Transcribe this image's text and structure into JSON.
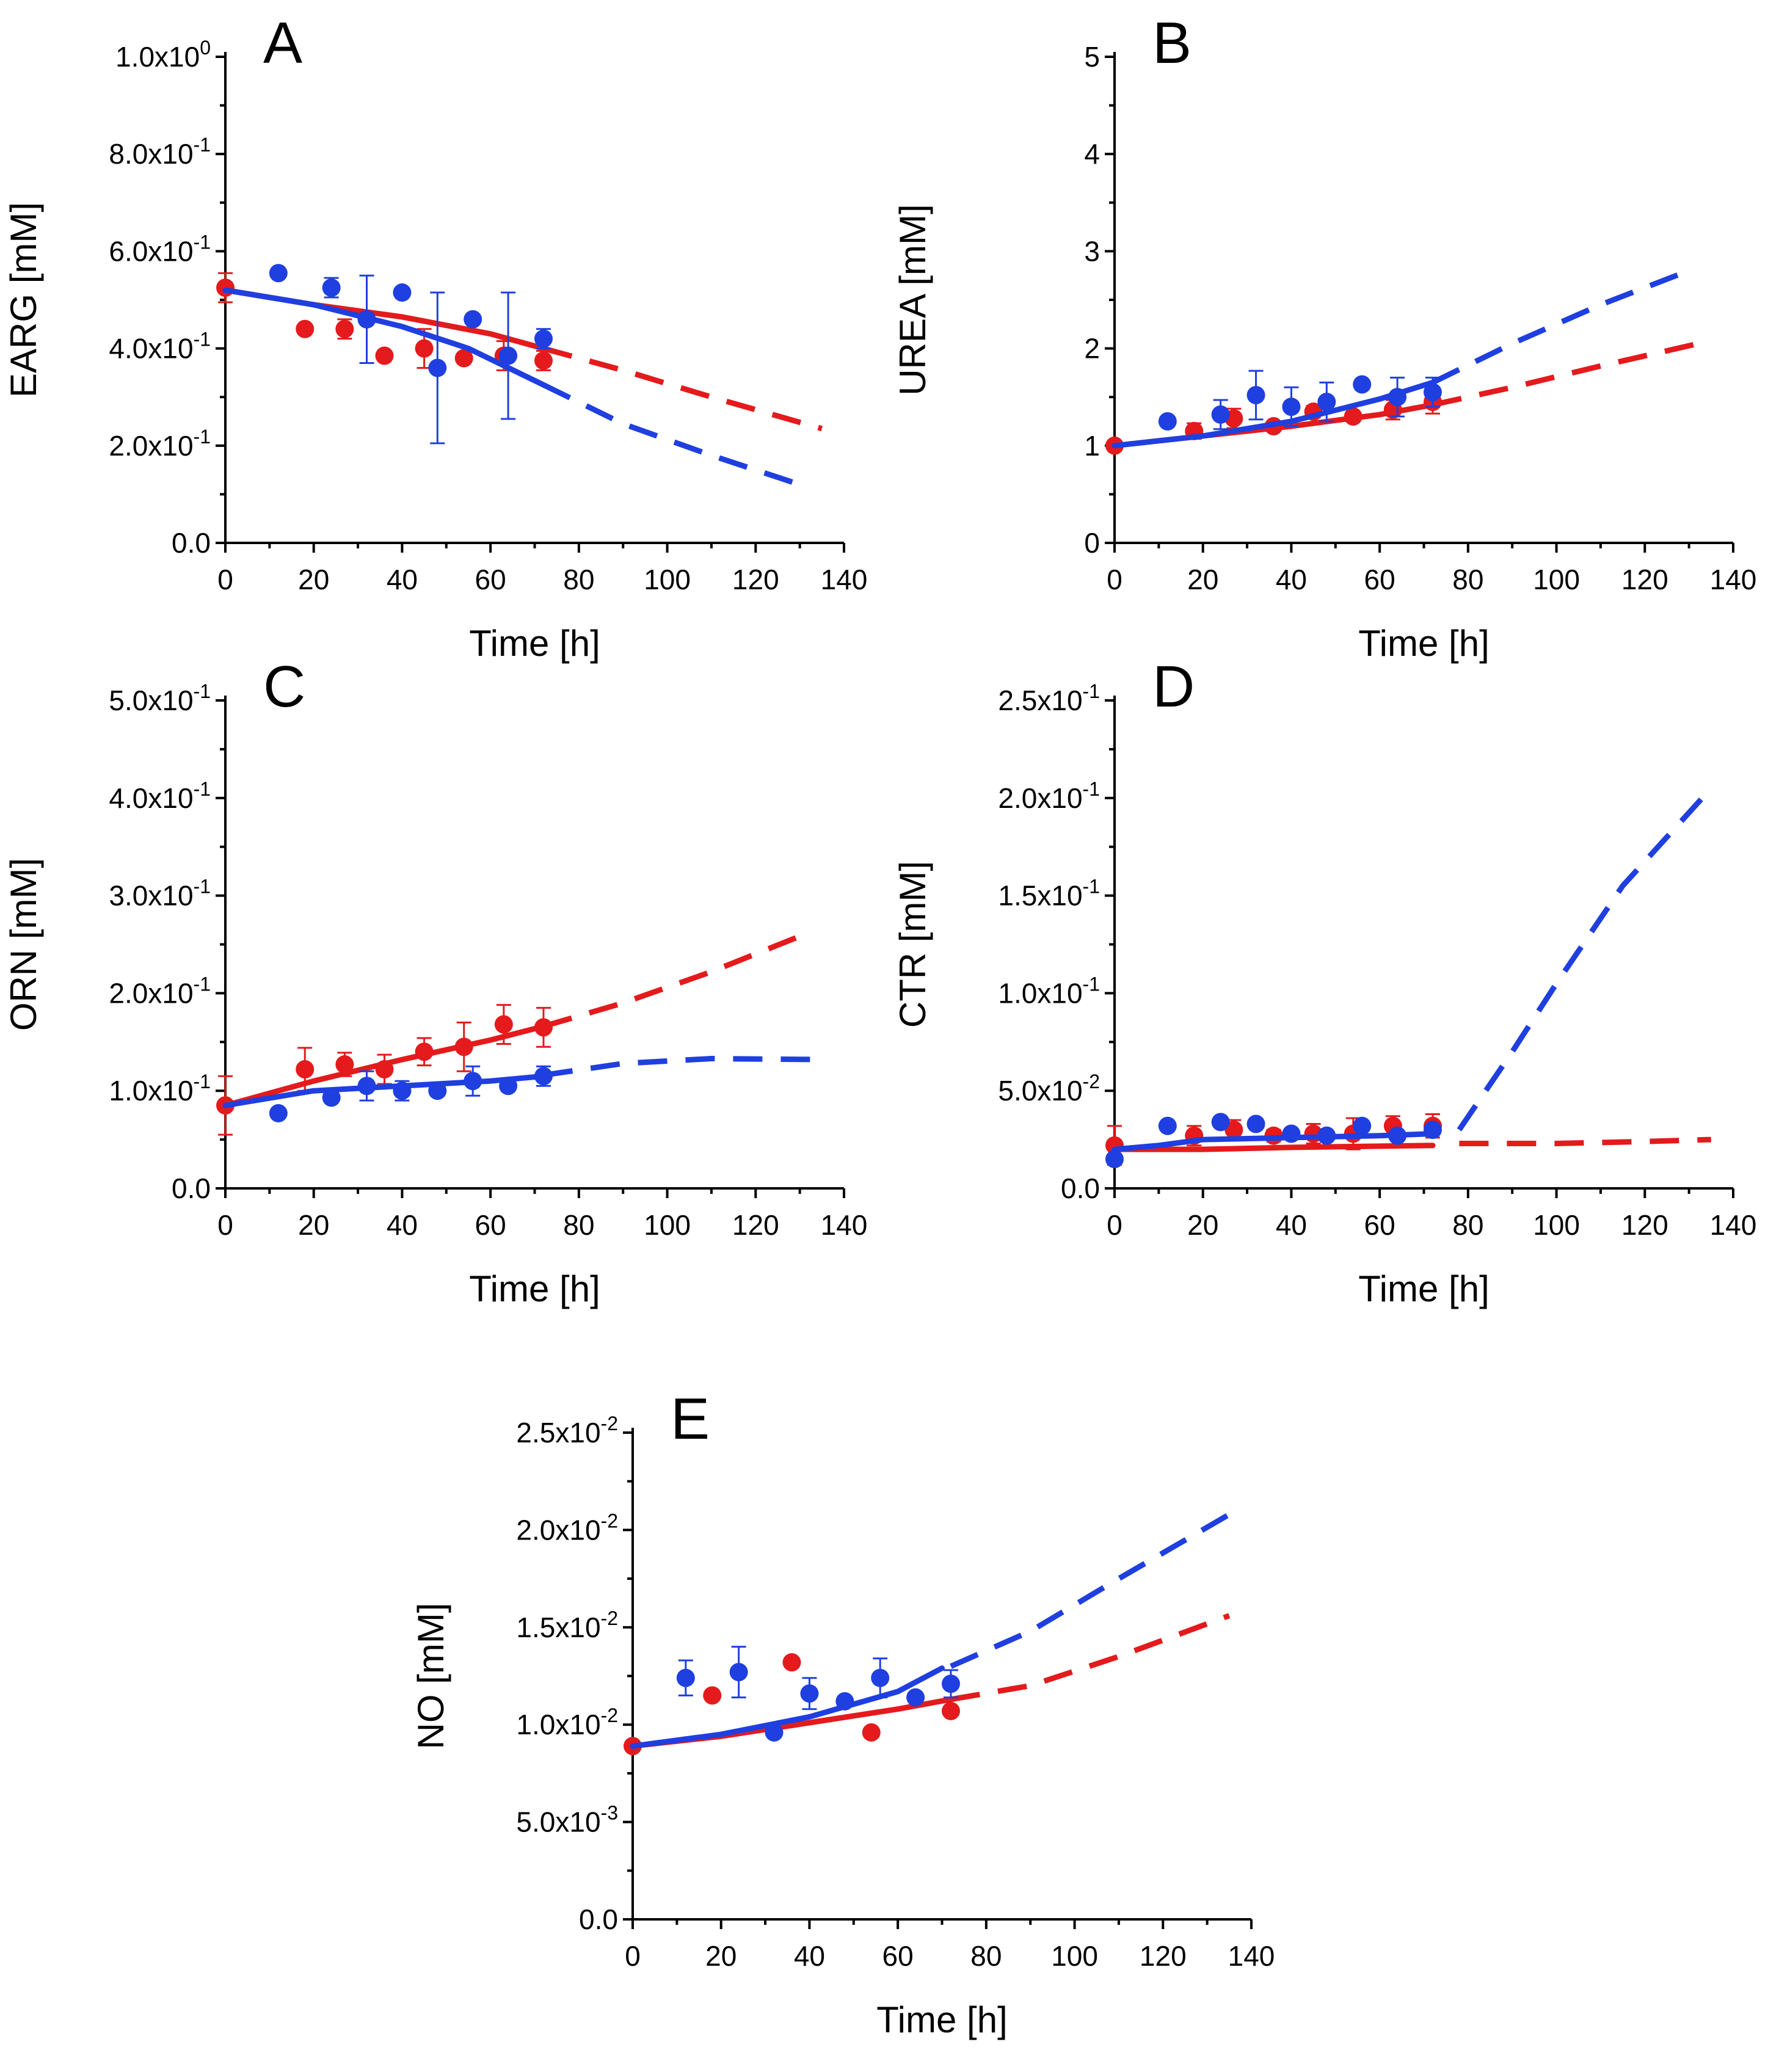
{
  "colors": {
    "series_a": "#e41a1c",
    "series_b": "#1f3fe0"
  },
  "chart_data": [
    {
      "type": "scatter",
      "panel": "A",
      "xlabel": "Time [h]",
      "ylabel": "EARG [mM]",
      "xlim": [
        0,
        140
      ],
      "ylim": [
        0,
        1.0
      ],
      "xticks": [
        "0",
        "20",
        "40",
        "60",
        "80",
        "100",
        "120",
        "140"
      ],
      "yticks": [
        {
          "value": 0,
          "mant": "0.0",
          "exp": ""
        },
        {
          "value": 0.2,
          "mant": "2.0x10",
          "exp": "-1"
        },
        {
          "value": 0.4,
          "mant": "4.0x10",
          "exp": "-1"
        },
        {
          "value": 0.6,
          "mant": "6.0x10",
          "exp": "-1"
        },
        {
          "value": 0.8,
          "mant": "8.0x10",
          "exp": "-1"
        },
        {
          "value": 1.0,
          "mant": "1.0x10",
          "exp": "0"
        }
      ],
      "series": [
        {
          "name": "red",
          "color": "#e41a1c",
          "points": [
            [
              0,
              0.525,
              0.03
            ],
            [
              18,
              0.44,
              0
            ],
            [
              27,
              0.44,
              0.02
            ],
            [
              36,
              0.385,
              0
            ],
            [
              45,
              0.4,
              0.04
            ],
            [
              54,
              0.38,
              0
            ],
            [
              63,
              0.385,
              0.03
            ],
            [
              72,
              0.375,
              0.02
            ]
          ],
          "fit": [
            [
              0,
              0.52
            ],
            [
              20,
              0.49
            ],
            [
              40,
              0.465
            ],
            [
              60,
              0.43
            ],
            [
              72,
              0.4
            ]
          ],
          "prediction": [
            [
              72,
              0.4
            ],
            [
              90,
              0.355
            ],
            [
              110,
              0.3
            ],
            [
              135,
              0.235
            ]
          ]
        },
        {
          "name": "blue",
          "color": "#1f3fe0",
          "points": [
            [
              12,
              0.555,
              0
            ],
            [
              24,
              0.525,
              0.02
            ],
            [
              32,
              0.46,
              0.09
            ],
            [
              40,
              0.515,
              0
            ],
            [
              48,
              0.36,
              0.155
            ],
            [
              56,
              0.46,
              0
            ],
            [
              64,
              0.385,
              0.13
            ],
            [
              72,
              0.42,
              0.02
            ]
          ],
          "fit": [
            [
              0,
              0.52
            ],
            [
              20,
              0.49
            ],
            [
              40,
              0.445
            ],
            [
              55,
              0.4
            ],
            [
              72,
              0.325
            ]
          ],
          "prediction": [
            [
              72,
              0.325
            ],
            [
              90,
              0.245
            ],
            [
              110,
              0.18
            ],
            [
              130,
              0.12
            ]
          ]
        }
      ]
    },
    {
      "type": "scatter",
      "panel": "B",
      "xlabel": "Time [h]",
      "ylabel": "UREA [mM]",
      "xlim": [
        0,
        140
      ],
      "ylim": [
        0,
        5
      ],
      "xticks": [
        "0",
        "20",
        "40",
        "60",
        "80",
        "100",
        "120",
        "140"
      ],
      "yticks": [
        {
          "value": 0,
          "mant": "0",
          "exp": ""
        },
        {
          "value": 1,
          "mant": "1",
          "exp": ""
        },
        {
          "value": 2,
          "mant": "2",
          "exp": ""
        },
        {
          "value": 3,
          "mant": "3",
          "exp": ""
        },
        {
          "value": 4,
          "mant": "4",
          "exp": ""
        },
        {
          "value": 5,
          "mant": "5",
          "exp": ""
        }
      ],
      "series": [
        {
          "name": "red",
          "color": "#e41a1c",
          "points": [
            [
              0,
              1.0,
              0.05
            ],
            [
              18,
              1.15,
              0.08
            ],
            [
              27,
              1.28,
              0.1
            ],
            [
              36,
              1.2,
              0
            ],
            [
              45,
              1.35,
              0.06
            ],
            [
              54,
              1.3,
              0.05
            ],
            [
              63,
              1.37,
              0.1
            ],
            [
              72,
              1.45,
              0.12
            ]
          ],
          "fit": [
            [
              0,
              1.0
            ],
            [
              20,
              1.1
            ],
            [
              40,
              1.2
            ],
            [
              60,
              1.32
            ],
            [
              72,
              1.42
            ]
          ],
          "prediction": [
            [
              72,
              1.42
            ],
            [
              90,
              1.6
            ],
            [
              110,
              1.82
            ],
            [
              135,
              2.08
            ]
          ]
        },
        {
          "name": "blue",
          "color": "#1f3fe0",
          "points": [
            [
              12,
              1.25,
              0
            ],
            [
              24,
              1.32,
              0.15
            ],
            [
              32,
              1.52,
              0.25
            ],
            [
              40,
              1.4,
              0.2
            ],
            [
              48,
              1.45,
              0.2
            ],
            [
              56,
              1.63,
              0
            ],
            [
              64,
              1.5,
              0.2
            ],
            [
              72,
              1.55,
              0.15
            ]
          ],
          "fit": [
            [
              0,
              1.0
            ],
            [
              20,
              1.1
            ],
            [
              40,
              1.25
            ],
            [
              60,
              1.48
            ],
            [
              72,
              1.65
            ]
          ],
          "prediction": [
            [
              72,
              1.65
            ],
            [
              90,
              2.05
            ],
            [
              110,
              2.45
            ],
            [
              130,
              2.8
            ]
          ]
        }
      ]
    },
    {
      "type": "scatter",
      "panel": "C",
      "xlabel": "Time [h]",
      "ylabel": "ORN [mM]",
      "xlim": [
        0,
        140
      ],
      "ylim": [
        0,
        0.5
      ],
      "xticks": [
        "0",
        "20",
        "40",
        "60",
        "80",
        "100",
        "120",
        "140"
      ],
      "yticks": [
        {
          "value": 0,
          "mant": "0.0",
          "exp": ""
        },
        {
          "value": 0.1,
          "mant": "1.0x10",
          "exp": "-1"
        },
        {
          "value": 0.2,
          "mant": "2.0x10",
          "exp": "-1"
        },
        {
          "value": 0.3,
          "mant": "3.0x10",
          "exp": "-1"
        },
        {
          "value": 0.4,
          "mant": "4.0x10",
          "exp": "-1"
        },
        {
          "value": 0.5,
          "mant": "5.0x10",
          "exp": "-1"
        }
      ],
      "series": [
        {
          "name": "red",
          "color": "#e41a1c",
          "points": [
            [
              0,
              0.085,
              0.03
            ],
            [
              18,
              0.122,
              0.022
            ],
            [
              27,
              0.127,
              0.012
            ],
            [
              36,
              0.122,
              0.015
            ],
            [
              45,
              0.14,
              0.014
            ],
            [
              54,
              0.145,
              0.025
            ],
            [
              63,
              0.168,
              0.02
            ],
            [
              72,
              0.165,
              0.02
            ]
          ],
          "fit": [
            [
              0,
              0.085
            ],
            [
              20,
              0.11
            ],
            [
              40,
              0.132
            ],
            [
              60,
              0.152
            ],
            [
              72,
              0.166
            ]
          ],
          "prediction": [
            [
              72,
              0.166
            ],
            [
              90,
              0.19
            ],
            [
              110,
              0.222
            ],
            [
              132,
              0.262
            ]
          ]
        },
        {
          "name": "blue",
          "color": "#1f3fe0",
          "points": [
            [
              12,
              0.077,
              0
            ],
            [
              24,
              0.093,
              0.005
            ],
            [
              32,
              0.105,
              0.015
            ],
            [
              40,
              0.1,
              0.01
            ],
            [
              48,
              0.1,
              0.005
            ],
            [
              56,
              0.11,
              0.015
            ],
            [
              64,
              0.105,
              0.005
            ],
            [
              72,
              0.115,
              0.01
            ]
          ],
          "fit": [
            [
              0,
              0.085
            ],
            [
              20,
              0.1
            ],
            [
              40,
              0.105
            ],
            [
              60,
              0.11
            ],
            [
              72,
              0.115
            ]
          ],
          "prediction": [
            [
              72,
              0.116
            ],
            [
              90,
              0.128
            ],
            [
              110,
              0.133
            ],
            [
              135,
              0.132
            ]
          ]
        }
      ]
    },
    {
      "type": "scatter",
      "panel": "D",
      "xlabel": "Time [h]",
      "ylabel": "CTR [mM]",
      "xlim": [
        0,
        140
      ],
      "ylim": [
        0,
        0.25
      ],
      "xticks": [
        "0",
        "20",
        "40",
        "60",
        "80",
        "100",
        "120",
        "140"
      ],
      "yticks": [
        {
          "value": 0,
          "mant": "0.0",
          "exp": ""
        },
        {
          "value": 0.05,
          "mant": "5.0x10",
          "exp": "-2"
        },
        {
          "value": 0.1,
          "mant": "1.0x10",
          "exp": "-1"
        },
        {
          "value": 0.15,
          "mant": "1.5x10",
          "exp": "-1"
        },
        {
          "value": 0.2,
          "mant": "2.0x10",
          "exp": "-1"
        },
        {
          "value": 0.25,
          "mant": "2.5x10",
          "exp": "-1"
        }
      ],
      "series": [
        {
          "name": "red",
          "color": "#e41a1c",
          "points": [
            [
              0,
              0.022,
              0.01
            ],
            [
              18,
              0.027,
              0.005
            ],
            [
              27,
              0.03,
              0.005
            ],
            [
              36,
              0.027,
              0.003
            ],
            [
              45,
              0.028,
              0.005
            ],
            [
              54,
              0.028,
              0.008
            ],
            [
              63,
              0.032,
              0.005
            ],
            [
              72,
              0.032,
              0.006
            ]
          ],
          "fit": [
            [
              0,
              0.02
            ],
            [
              20,
              0.02
            ],
            [
              40,
              0.021
            ],
            [
              72,
              0.022
            ]
          ],
          "prediction": [
            [
              78,
              0.023
            ],
            [
              100,
              0.023
            ],
            [
              120,
              0.024
            ],
            [
              135,
              0.025
            ]
          ]
        },
        {
          "name": "blue",
          "color": "#1f3fe0",
          "points": [
            [
              0,
              0.015,
              0
            ],
            [
              12,
              0.032,
              0
            ],
            [
              24,
              0.034,
              0
            ],
            [
              32,
              0.033,
              0
            ],
            [
              40,
              0.028,
              0
            ],
            [
              48,
              0.027,
              0
            ],
            [
              56,
              0.032,
              0
            ],
            [
              64,
              0.027,
              0
            ],
            [
              72,
              0.03,
              0
            ]
          ],
          "fit": [
            [
              0,
              0.02
            ],
            [
              10,
              0.022
            ],
            [
              20,
              0.025
            ],
            [
              40,
              0.026
            ],
            [
              60,
              0.027
            ],
            [
              72,
              0.028
            ]
          ],
          "prediction": [
            [
              78,
              0.03
            ],
            [
              90,
              0.07
            ],
            [
              100,
              0.105
            ],
            [
              115,
              0.155
            ],
            [
              135,
              0.205
            ]
          ]
        }
      ]
    },
    {
      "type": "scatter",
      "panel": "E",
      "xlabel": "Time [h]",
      "ylabel": "NO [mM]",
      "xlim": [
        0,
        140
      ],
      "ylim": [
        0,
        0.025
      ],
      "xticks": [
        "0",
        "20",
        "40",
        "60",
        "80",
        "100",
        "120",
        "140"
      ],
      "yticks": [
        {
          "value": 0,
          "mant": "0.0",
          "exp": ""
        },
        {
          "value": 0.005,
          "mant": "5.0x10",
          "exp": "-3"
        },
        {
          "value": 0.01,
          "mant": "1.0x10",
          "exp": "-2"
        },
        {
          "value": 0.015,
          "mant": "1.5x10",
          "exp": "-2"
        },
        {
          "value": 0.02,
          "mant": "2.0x10",
          "exp": "-2"
        },
        {
          "value": 0.025,
          "mant": "2.5x10",
          "exp": "-2"
        }
      ],
      "series": [
        {
          "name": "red",
          "color": "#e41a1c",
          "points": [
            [
              0,
              0.0089,
              0
            ],
            [
              18,
              0.0115,
              0
            ],
            [
              36,
              0.0132,
              0
            ],
            [
              54,
              0.0096,
              0
            ],
            [
              72,
              0.0107,
              0
            ]
          ],
          "fit": [
            [
              0,
              0.0089
            ],
            [
              20,
              0.0094
            ],
            [
              40,
              0.0101
            ],
            [
              60,
              0.0108
            ],
            [
              72,
              0.0113
            ]
          ],
          "prediction": [
            [
              72,
              0.0113
            ],
            [
              90,
              0.012
            ],
            [
              110,
              0.0135
            ],
            [
              135,
              0.0156
            ]
          ]
        },
        {
          "name": "blue",
          "color": "#1f3fe0",
          "points": [
            [
              12,
              0.0124,
              0.0009
            ],
            [
              24,
              0.0127,
              0.0013
            ],
            [
              32,
              0.0096,
              0
            ],
            [
              40,
              0.0116,
              0.0008
            ],
            [
              48,
              0.0112,
              0
            ],
            [
              56,
              0.0124,
              0.001
            ],
            [
              64,
              0.0114,
              0
            ],
            [
              72,
              0.0121,
              0.0007
            ]
          ],
          "fit": [
            [
              0,
              0.0089
            ],
            [
              20,
              0.0095
            ],
            [
              40,
              0.0104
            ],
            [
              60,
              0.0117
            ],
            [
              70,
              0.0129
            ]
          ],
          "prediction": [
            [
              72,
              0.013
            ],
            [
              90,
              0.0148
            ],
            [
              110,
              0.0175
            ],
            [
              135,
              0.0208
            ]
          ]
        }
      ]
    }
  ]
}
